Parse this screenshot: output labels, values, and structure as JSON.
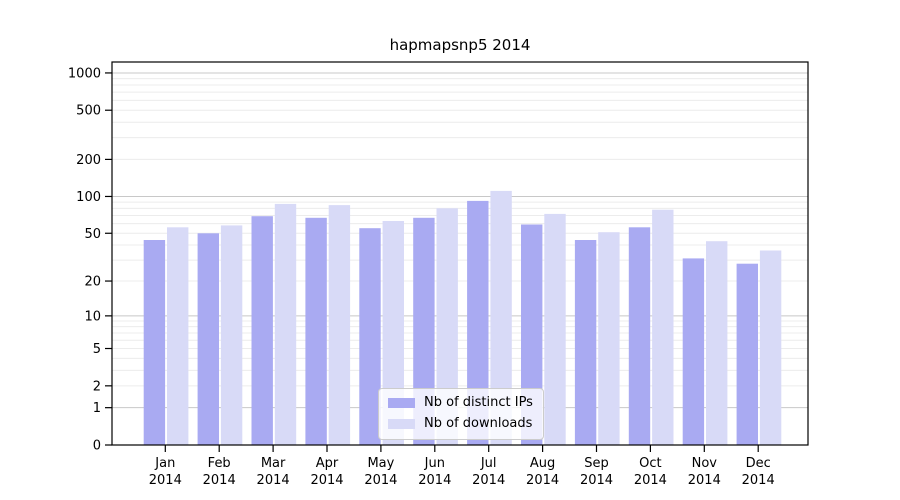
{
  "title": "hapmapsnp5 2014",
  "chart_data": {
    "type": "bar",
    "title": "hapmapsnp5 2014",
    "categories": [
      "Jan",
      "Feb",
      "Mar",
      "Apr",
      "May",
      "Jun",
      "Jul",
      "Aug",
      "Sep",
      "Oct",
      "Nov",
      "Dec"
    ],
    "x_axis": {
      "year_label": "2014"
    },
    "series": [
      {
        "name": "Nb of distinct IPs",
        "color": "#a9aaf2",
        "values": [
          44,
          50,
          69,
          67,
          55,
          67,
          92,
          59,
          44,
          56,
          31,
          28
        ]
      },
      {
        "name": "Nb of downloads",
        "color": "#d8daf7",
        "values": [
          56,
          58,
          87,
          85,
          63,
          80,
          111,
          72,
          51,
          78,
          43,
          36
        ]
      }
    ],
    "y_axis": {
      "scale": "log10(value+1)",
      "tick_labels": [
        1000,
        500,
        200,
        100,
        50,
        20,
        10,
        5,
        2,
        1,
        0
      ],
      "top_value": 1226
    },
    "grid": {
      "major_values": [
        1,
        10,
        100,
        1000
      ],
      "major_color": "#c8c8c8",
      "minor_color": "#ececec"
    },
    "legend_position": "lower center inside plot"
  },
  "axis_color": "#000000"
}
